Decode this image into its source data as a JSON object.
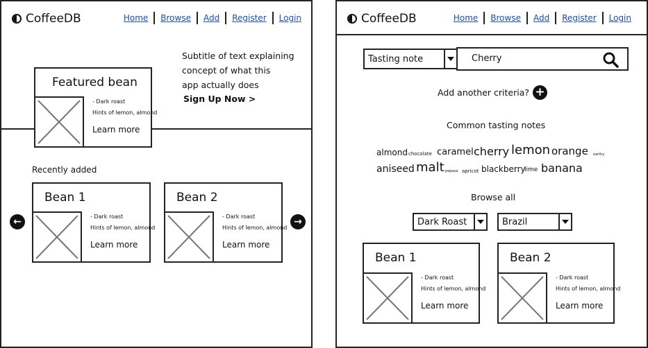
{
  "brand": {
    "name": "CoffeeDB"
  },
  "nav": {
    "home": "Home",
    "browse": "Browse",
    "add": "Add",
    "register": "Register",
    "login": "Login"
  },
  "home": {
    "featured": {
      "title": "Featured bean",
      "roast": "- Dark roast",
      "notes": "Hints of lemon, almond",
      "learn": "Learn more"
    },
    "hero": {
      "line1": "Subtitle of text explaining",
      "line2": "concept of what this",
      "line3": "app actually does",
      "cta": "Sign Up Now >"
    },
    "recent": {
      "heading": "Recently added",
      "cards": [
        {
          "title": "Bean 1",
          "roast": "- Dark roast",
          "notes": "Hints of lemon, almond",
          "learn": "Learn more"
        },
        {
          "title": "Bean 2",
          "roast": "- Dark roast",
          "notes": "Hints of lemon, almond",
          "learn": "Learn more"
        }
      ]
    }
  },
  "browse": {
    "search": {
      "criteria": "Tasting note",
      "value": "Cherry"
    },
    "add_criteria": "Add another criteria?",
    "common_heading": "Common tasting notes",
    "tags": [
      "almond",
      "chocolate",
      "caramel",
      "cherry",
      "lemon",
      "orange",
      "earthy",
      "aniseed",
      "malt",
      "papaya",
      "apricot",
      "blackberry",
      "lime",
      "banana"
    ],
    "browse_all": "Browse all",
    "filters": {
      "roast": "Dark Roast",
      "origin": "Brazil"
    },
    "cards": [
      {
        "title": "Bean 1",
        "roast": "- Dark roast",
        "notes": "Hints of lemon, almond",
        "learn": "Learn more"
      },
      {
        "title": "Bean 2",
        "roast": "- Dark roast",
        "notes": "Hints of lemon, almond",
        "learn": "Learn more"
      }
    ]
  }
}
